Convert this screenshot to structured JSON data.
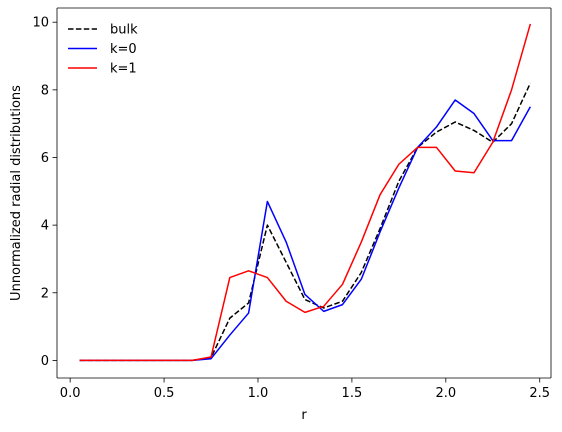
{
  "chart_data": {
    "type": "line",
    "title": "",
    "xlabel": "r",
    "ylabel": "Unnormalized radial distributions",
    "xlim": [
      -0.07,
      2.56
    ],
    "ylim": [
      -0.52,
      10.42
    ],
    "xticks": [
      0.0,
      0.5,
      1.0,
      1.5,
      2.0,
      2.5
    ],
    "xtick_labels": [
      "0.0",
      "0.5",
      "1.0",
      "1.5",
      "2.0",
      "2.5"
    ],
    "yticks": [
      0,
      2,
      4,
      6,
      8,
      10
    ],
    "ytick_labels": [
      "0",
      "2",
      "4",
      "6",
      "8",
      "10"
    ],
    "grid": false,
    "legend_position": "top-left",
    "x": [
      0.05,
      0.15,
      0.25,
      0.35,
      0.45,
      0.55,
      0.65,
      0.75,
      0.85,
      0.95,
      1.05,
      1.15,
      1.25,
      1.35,
      1.45,
      1.55,
      1.65,
      1.75,
      1.85,
      1.95,
      2.05,
      2.15,
      2.25,
      2.35,
      2.45
    ],
    "series": [
      {
        "name": "bulk",
        "color": "#000000",
        "dash": "dashed",
        "values": [
          0,
          0,
          0,
          0,
          0,
          0,
          0,
          0.08,
          1.25,
          1.7,
          4.0,
          2.9,
          1.8,
          1.55,
          1.75,
          2.6,
          3.9,
          5.3,
          6.3,
          6.75,
          7.05,
          6.8,
          6.45,
          7.0,
          8.2
        ]
      },
      {
        "name": "k=0",
        "color": "#0000ff",
        "dash": "solid",
        "values": [
          0,
          0,
          0,
          0,
          0,
          0,
          0,
          0.05,
          0.75,
          1.4,
          4.7,
          3.5,
          1.95,
          1.45,
          1.65,
          2.4,
          3.8,
          5.1,
          6.3,
          6.9,
          7.7,
          7.3,
          6.5,
          6.5,
          7.5
        ]
      },
      {
        "name": "k=1",
        "color": "#ff0000",
        "dash": "solid",
        "values": [
          0,
          0,
          0,
          0,
          0,
          0,
          0,
          0.1,
          2.45,
          2.65,
          2.45,
          1.75,
          1.42,
          1.6,
          2.25,
          3.5,
          4.9,
          5.8,
          6.3,
          6.3,
          5.6,
          5.55,
          6.45,
          8.0,
          9.95
        ]
      }
    ]
  }
}
